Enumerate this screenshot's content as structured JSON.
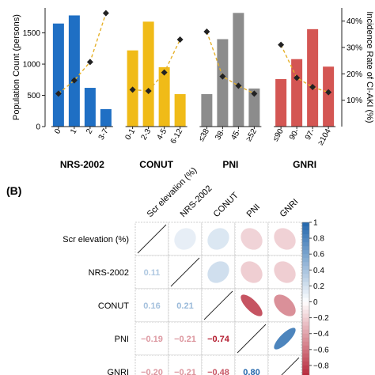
{
  "panel_b_label": "(B)",
  "chart_data": [
    {
      "type": "bar",
      "ylabel": "Population Count (persons)",
      "y2label": "Incidence Rate of CI-AKI (%)",
      "ylim": [
        0,
        1900
      ],
      "yticks": [
        0,
        500,
        1000,
        1500
      ],
      "y2lim": [
        0,
        0.45
      ],
      "y2ticks": [
        "10%",
        "20%",
        "30%",
        "40%"
      ],
      "y2tick_values": [
        0.1,
        0.2,
        0.3,
        0.4
      ],
      "groups": [
        {
          "name": "NRS-2002",
          "color": "#1f6fc4",
          "categories": [
            "0",
            "1",
            "2",
            "3-7"
          ],
          "values": [
            1650,
            1780,
            620,
            280
          ],
          "rates": [
            0.125,
            0.175,
            0.245,
            0.43
          ]
        },
        {
          "name": "CONUT",
          "color": "#f0bb18",
          "categories": [
            "0-1",
            "2-3",
            "4-5",
            "6-12"
          ],
          "values": [
            1220,
            1680,
            950,
            520
          ],
          "rates": [
            0.14,
            0.135,
            0.205,
            0.33
          ]
        },
        {
          "name": "PNI",
          "color": "#8c8c8c",
          "categories": [
            "≤38",
            "38-",
            "45-",
            "≥52"
          ],
          "values": [
            520,
            1400,
            1820,
            610
          ],
          "rates": [
            0.36,
            0.19,
            0.155,
            0.125
          ]
        },
        {
          "name": "GNRI",
          "color": "#d45653",
          "categories": [
            "≤90",
            "90-",
            "97-",
            "≥104"
          ],
          "values": [
            760,
            1080,
            1560,
            960
          ],
          "rates": [
            0.31,
            0.185,
            0.15,
            0.13
          ]
        }
      ]
    },
    {
      "type": "heatmap",
      "variables": [
        "Scr elevation (%)",
        "NRS-2002",
        "CONUT",
        "PNI",
        "GNRI"
      ],
      "matrix": [
        [
          1,
          0.11,
          0.16,
          -0.19,
          -0.2
        ],
        [
          0.11,
          1,
          0.21,
          -0.21,
          -0.21
        ],
        [
          0.16,
          0.21,
          1,
          -0.74,
          -0.48
        ],
        [
          -0.19,
          -0.21,
          -0.74,
          1,
          0.8
        ],
        [
          -0.2,
          -0.21,
          -0.48,
          0.8,
          1
        ]
      ],
      "lower_labels": [
        {
          "row": 1,
          "col": 0,
          "text": "0.11"
        },
        {
          "row": 2,
          "col": 0,
          "text": "0.16"
        },
        {
          "row": 2,
          "col": 1,
          "text": "0.21"
        },
        {
          "row": 3,
          "col": 0,
          "text": "−0.19"
        },
        {
          "row": 3,
          "col": 1,
          "text": "−0.21"
        },
        {
          "row": 3,
          "col": 2,
          "text": "−0.74"
        },
        {
          "row": 4,
          "col": 0,
          "text": "−0.20"
        },
        {
          "row": 4,
          "col": 1,
          "text": "−0.21"
        },
        {
          "row": 4,
          "col": 2,
          "text": "−0.48"
        },
        {
          "row": 4,
          "col": 3,
          "text": "0.80"
        }
      ],
      "colorbar_ticks": [
        "1",
        "0.8",
        "0.6",
        "0.4",
        "0.2",
        "0",
        "−0.2",
        "−0.4",
        "−0.6",
        "−0.8"
      ],
      "colorbar_tick_values": [
        1,
        0.8,
        0.6,
        0.4,
        0.2,
        0,
        -0.2,
        -0.4,
        -0.6,
        -0.8
      ],
      "colorbar_range": [
        -1,
        1
      ]
    }
  ]
}
